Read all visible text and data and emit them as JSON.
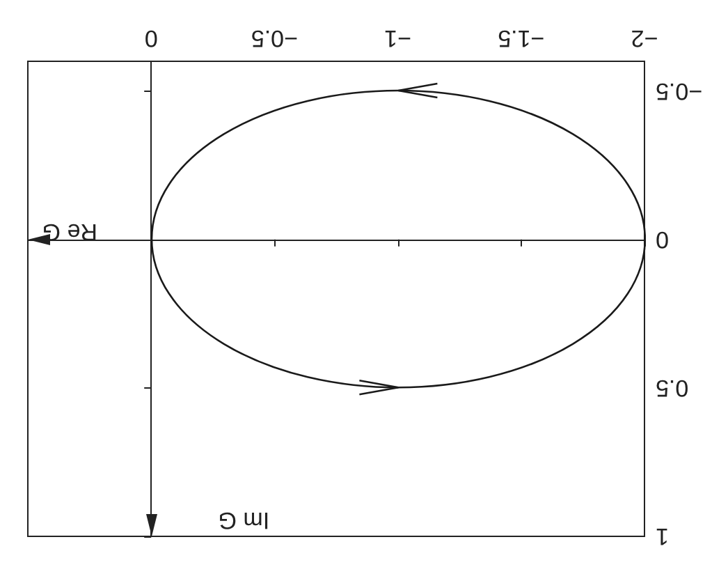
{
  "chart_data": {
    "type": "line",
    "xlim": [
      0.5,
      -2
    ],
    "xticks": [
      -2,
      -1.5,
      -1,
      -0.5,
      0
    ],
    "ylim": [
      1,
      -0.6
    ],
    "yticks": [
      -0.5,
      0,
      0.5,
      1
    ],
    "ref_lines": [
      {
        "axis": "y",
        "value": 0,
        "label": "Re G"
      },
      {
        "axis": "x",
        "value": 0,
        "label": "Im G"
      }
    ],
    "grid": false
  }
}
